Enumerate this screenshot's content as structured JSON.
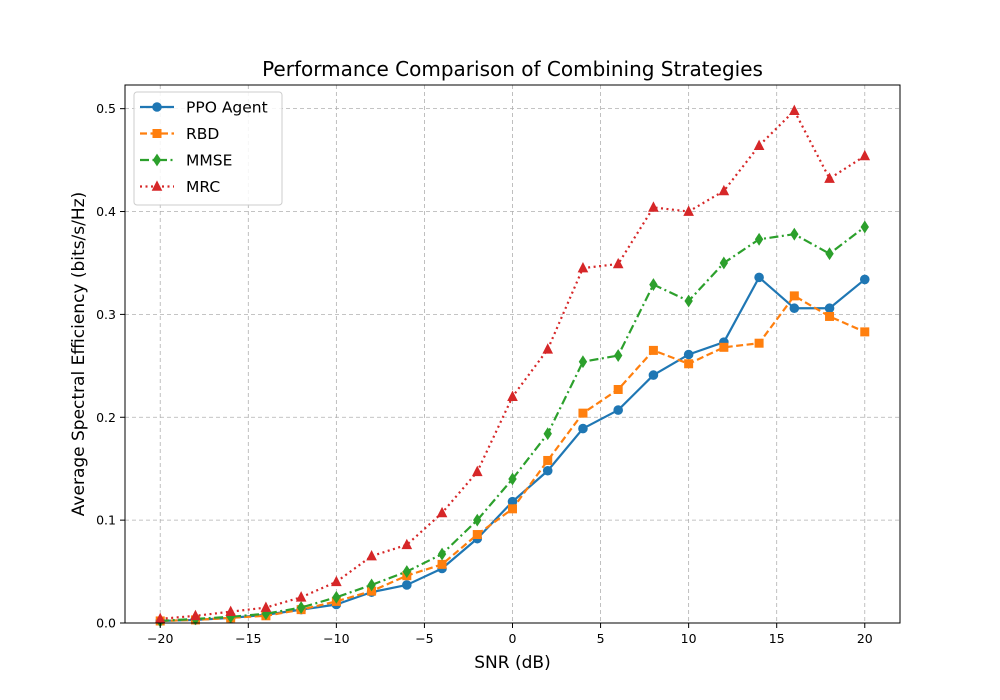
{
  "chart_data": {
    "type": "line",
    "title": "Performance Comparison of Combining Strategies",
    "xlabel": "SNR (dB)",
    "ylabel": "Average Spectral Efficiency (bits/s/Hz)",
    "xlim": [
      -22,
      22
    ],
    "ylim": [
      0,
      0.523
    ],
    "xticks": [
      -20,
      -15,
      -10,
      -5,
      0,
      5,
      10,
      15,
      20
    ],
    "xtick_labels": [
      "−20",
      "−15",
      "−10",
      "−5",
      "0",
      "5",
      "10",
      "15",
      "20"
    ],
    "yticks": [
      0.0,
      0.1,
      0.2,
      0.3,
      0.4,
      0.5
    ],
    "ytick_labels": [
      "0.0",
      "0.1",
      "0.2",
      "0.3",
      "0.4",
      "0.5"
    ],
    "grid": true,
    "legend_position": "top-left",
    "x": [
      -20,
      -18,
      -16,
      -14,
      -12,
      -10,
      -8,
      -6,
      -4,
      -2,
      0,
      2,
      4,
      6,
      8,
      10,
      12,
      14,
      16,
      18,
      20
    ],
    "series": [
      {
        "name": "PPO Agent",
        "color": "#1f77b4",
        "marker": "circle",
        "line_style": "solid",
        "values": [
          0.002,
          0.003,
          0.005,
          0.008,
          0.013,
          0.018,
          0.03,
          0.037,
          0.053,
          0.082,
          0.118,
          0.148,
          0.189,
          0.207,
          0.241,
          0.261,
          0.273,
          0.336,
          0.306,
          0.306,
          0.334
        ]
      },
      {
        "name": "RBD",
        "color": "#ff7f0e",
        "marker": "square",
        "line_style": "dashed",
        "values": [
          0.002,
          0.003,
          0.005,
          0.007,
          0.013,
          0.021,
          0.031,
          0.046,
          0.057,
          0.086,
          0.111,
          0.158,
          0.204,
          0.227,
          0.265,
          0.252,
          0.268,
          0.272,
          0.318,
          0.298,
          0.283
        ]
      },
      {
        "name": "MMSE",
        "color": "#2ca02c",
        "marker": "diamond",
        "line_style": "dashdot",
        "values": [
          0.002,
          0.004,
          0.006,
          0.009,
          0.015,
          0.025,
          0.037,
          0.05,
          0.067,
          0.1,
          0.14,
          0.184,
          0.254,
          0.26,
          0.329,
          0.313,
          0.35,
          0.373,
          0.378,
          0.359,
          0.385
        ]
      },
      {
        "name": "MRC",
        "color": "#d62728",
        "marker": "triangle",
        "line_style": "dotted",
        "values": [
          0.004,
          0.007,
          0.011,
          0.015,
          0.025,
          0.04,
          0.065,
          0.076,
          0.107,
          0.147,
          0.22,
          0.266,
          0.345,
          0.349,
          0.404,
          0.4,
          0.42,
          0.464,
          0.498,
          0.432,
          0.454
        ]
      }
    ]
  }
}
